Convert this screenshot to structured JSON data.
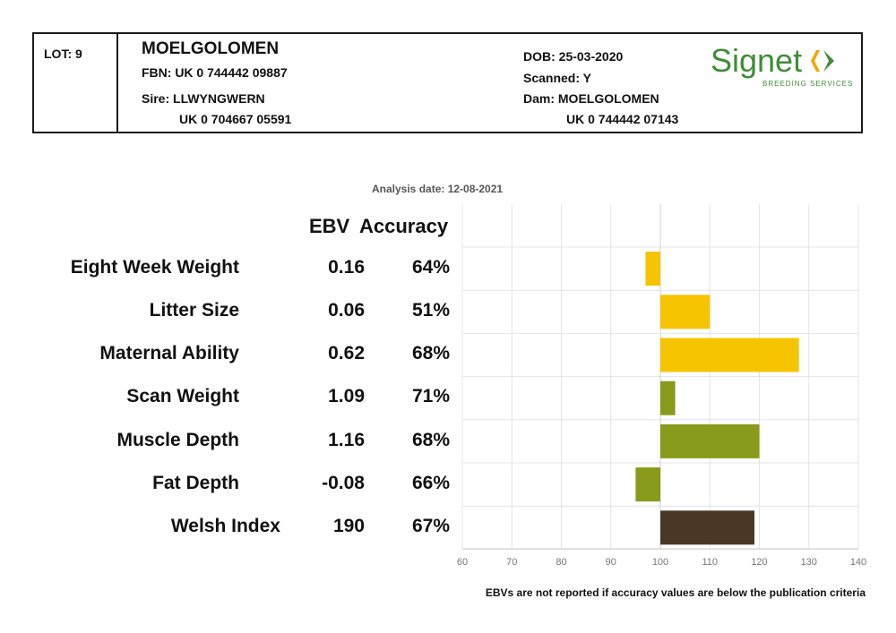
{
  "header": {
    "lot": "LOT: 9",
    "name": "MOELGOLOMEN",
    "fbn": "FBN: UK 0 744442 09887",
    "sire_label": "Sire: LLWYNGWERN",
    "sire_id": "UK 0 704667 05591",
    "dob": "DOB: 25-03-2020",
    "scanned": "Scanned: Y",
    "dam_label": "Dam: MOELGOLOMEN",
    "dam_id": "UK 0 744442 07143",
    "logo_text": "Signet",
    "logo_sub": "BREEDING SERVICES"
  },
  "analysis_date": "Analysis date: 12-08-2021",
  "columns": {
    "ebv": "EBV",
    "accuracy": "Accuracy"
  },
  "rows": [
    {
      "label": "Eight Week Weight",
      "ebv": "0.16",
      "accuracy": "64%"
    },
    {
      "label": "Litter Size",
      "ebv": "0.06",
      "accuracy": "51%"
    },
    {
      "label": "Maternal Ability",
      "ebv": "0.62",
      "accuracy": "68%"
    },
    {
      "label": "Scan Weight",
      "ebv": "1.09",
      "accuracy": "71%"
    },
    {
      "label": "Muscle Depth",
      "ebv": "1.16",
      "accuracy": "68%"
    },
    {
      "label": "Fat Depth",
      "ebv": "-0.08",
      "accuracy": "66%"
    },
    {
      "label": "Welsh Index",
      "ebv": "190",
      "accuracy": "67%"
    }
  ],
  "footnote": "EBVs are not reported if accuracy values are below the publication criteria",
  "colors": {
    "maternal": "#f5c400",
    "terminal": "#8a9a1b",
    "index": "#4a3726",
    "logo_green": "#3f8d37",
    "logo_orange": "#f0a800"
  },
  "chart_data": {
    "type": "bar",
    "orientation": "horizontal",
    "categories": [
      "Eight Week Weight",
      "Litter Size",
      "Maternal Ability",
      "Scan Weight",
      "Muscle Depth",
      "Fat Depth",
      "Welsh Index"
    ],
    "values": [
      97,
      110,
      128,
      103,
      120,
      95,
      119
    ],
    "baseline": 100,
    "bar_colors": [
      "#f5c400",
      "#f5c400",
      "#f5c400",
      "#8a9a1b",
      "#8a9a1b",
      "#8a9a1b",
      "#4a3726"
    ],
    "xlim": [
      60,
      140
    ],
    "xticks": [
      60,
      70,
      80,
      90,
      100,
      110,
      120,
      130,
      140
    ],
    "grid": true
  }
}
